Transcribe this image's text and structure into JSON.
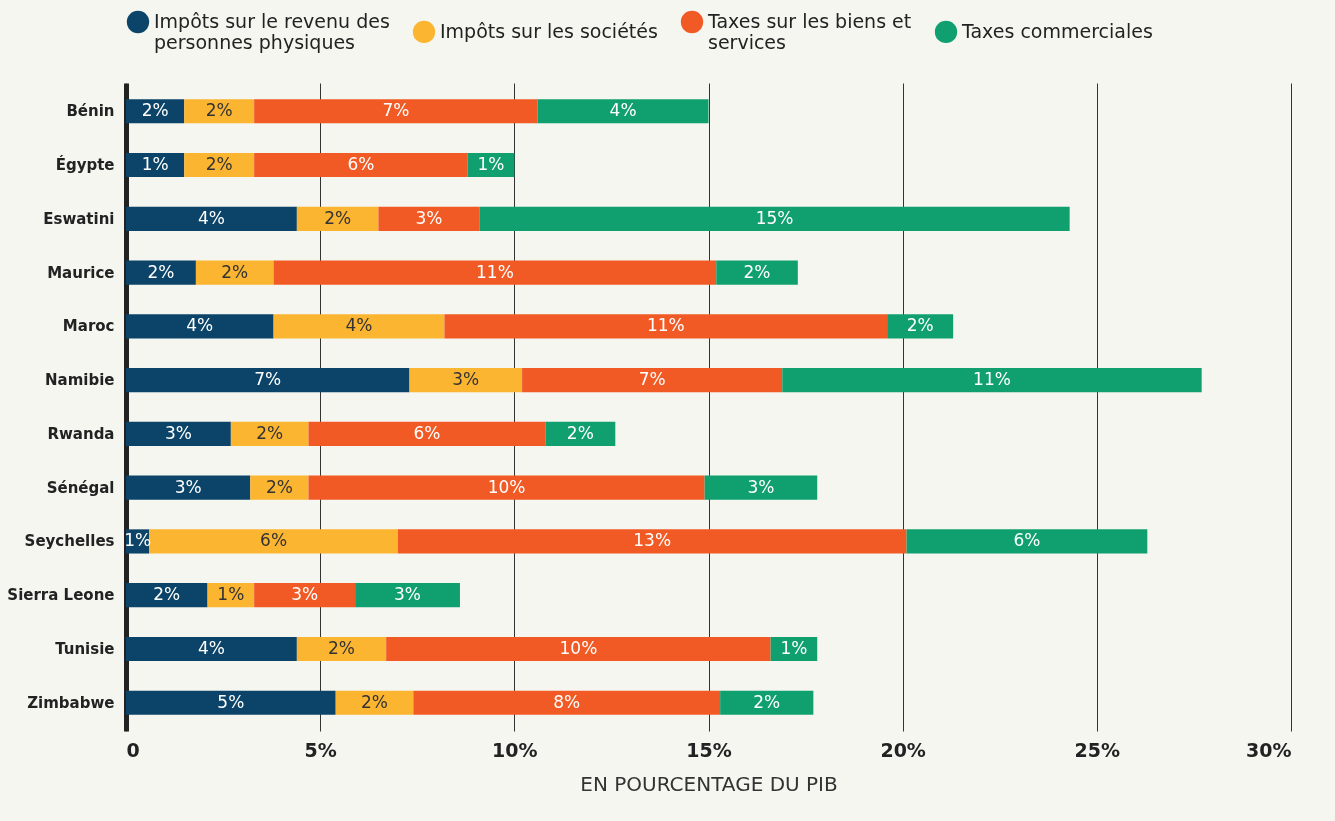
{
  "chart_data": {
    "type": "bar",
    "orientation": "horizontal",
    "stacked": true,
    "xlabel": "EN POURCENTAGE DU PIB",
    "categories": [
      "Bénin",
      "Égypte",
      "Eswatini",
      "Maurice",
      "Maroc",
      "Namibie",
      "Rwanda",
      "Sénégal",
      "Seychelles",
      "Sierra Leone",
      "Tunisie",
      "Zimbabwe"
    ],
    "series": [
      {
        "name": "Impôts sur le revenu des personnes physiques",
        "color": "#0b4468",
        "values": [
          1.5,
          1.5,
          4.4,
          1.8,
          3.8,
          7.3,
          2.7,
          3.2,
          0.6,
          2.1,
          4.4,
          5.4
        ],
        "value_labels": [
          "2%",
          "1%",
          "4%",
          "2%",
          "4%",
          "7%",
          "3%",
          "3%",
          "1%",
          "2%",
          "4%",
          "5%"
        ]
      },
      {
        "name": "Impôts sur les sociétés",
        "color": "#fbb531",
        "values": [
          1.8,
          1.8,
          2.1,
          2.0,
          4.4,
          2.9,
          2.0,
          1.5,
          6.4,
          1.2,
          2.3,
          2.0
        ],
        "value_labels": [
          "2%",
          "2%",
          "2%",
          "2%",
          "4%",
          "3%",
          "2%",
          "2%",
          "6%",
          "1%",
          "2%",
          "2%"
        ]
      },
      {
        "name": "Taxes sur les biens et services",
        "color": "#f15a24",
        "values": [
          7.3,
          5.5,
          2.6,
          11.4,
          11.4,
          6.7,
          6.1,
          10.2,
          13.1,
          2.6,
          9.9,
          7.9
        ],
        "value_labels": [
          "7%",
          "6%",
          "3%",
          "11%",
          "11%",
          "7%",
          "6%",
          "10%",
          "13%",
          "3%",
          "10%",
          "8%"
        ]
      },
      {
        "name": "Taxes commerciales",
        "color": "#10a06f",
        "values": [
          4.4,
          1.2,
          15.2,
          2.1,
          1.7,
          10.8,
          1.8,
          2.9,
          6.2,
          2.7,
          1.2,
          2.4
        ],
        "value_labels": [
          "4%",
          "1%",
          "15%",
          "2%",
          "2%",
          "11%",
          "2%",
          "3%",
          "6%",
          "3%",
          "1%",
          "2%"
        ]
      }
    ],
    "xlim": [
      0,
      30
    ],
    "xticks": [
      0,
      {
        "value": 5,
        "label": "5%"
      },
      {
        "value": 10,
        "label": "10%"
      },
      {
        "value": 15,
        "label": "15%"
      },
      {
        "value": 20,
        "label": "20%"
      },
      {
        "value": 25,
        "label": "25%"
      },
      {
        "value": 30,
        "label": "30%"
      }
    ],
    "grid": "x",
    "legend": "top left"
  }
}
